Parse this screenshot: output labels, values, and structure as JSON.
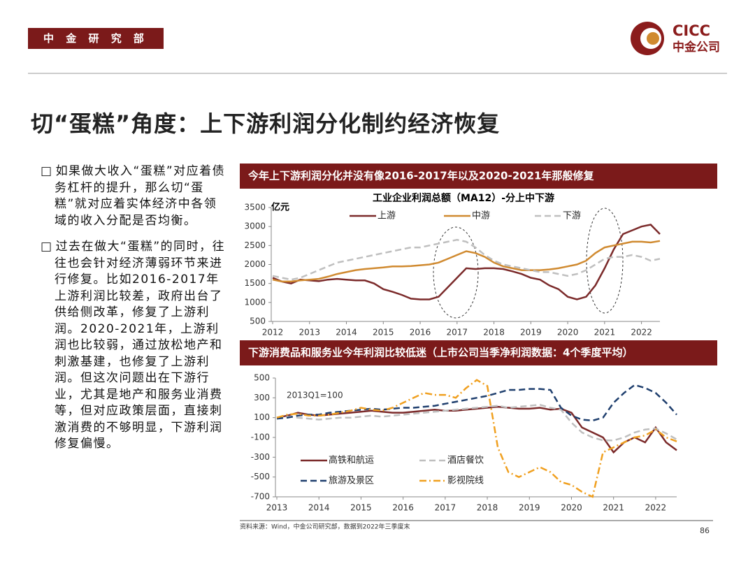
{
  "header": {
    "department": "中 金 研 究 部",
    "logo_en": "CICC",
    "logo_cn": "中金公司"
  },
  "title": "切“蛋糕”角度：上下游利润分化制约经济恢复",
  "bullets": [
    "如果做大收入“蛋糕”对应着债务杠杆的提升，那么切“蛋糕”就对应着实体经济中各领域的收入分配是否均衡。",
    "过去在做大“蛋糕”的同时，往往也会针对经济薄弱环节来进行修复。比如2016-2017年上游利润比较差，政府出台了供给侧改革，修复了上游利润。2020-2021年，上游利润也比较弱，通过放松地产和刺激基建，也修复了上游利润。但这次问题出在下游行业，尤其是地产和服务业消费等，但对应政策层面，直接刺激消费的不够明显，下游利润修复偏慢。"
  ],
  "source": "资料来源：Wind，中金公司研究部，数据到2022年三季度末",
  "page_number": "86",
  "chart_data": [
    {
      "type": "line",
      "subtitle": "今年上下游利润分化并没有像2016-2017年以及2020-2021年那般修复",
      "title": "工业企业利润总额（MA12）-分上中下游",
      "y_label": "亿元",
      "x": [
        2012,
        2012.25,
        2012.5,
        2012.75,
        2013,
        2013.25,
        2013.5,
        2013.75,
        2014,
        2014.25,
        2014.5,
        2014.75,
        2015,
        2015.25,
        2015.5,
        2015.75,
        2016,
        2016.25,
        2016.5,
        2016.75,
        2017,
        2017.25,
        2017.5,
        2017.75,
        2018,
        2018.25,
        2018.5,
        2018.75,
        2019,
        2019.25,
        2019.5,
        2019.75,
        2020,
        2020.25,
        2020.5,
        2020.75,
        2021,
        2021.25,
        2021.5,
        2021.75,
        2022,
        2022.25,
        2022.5
      ],
      "xlim": [
        2012,
        2022.5
      ],
      "xticks": [
        2012,
        2013,
        2014,
        2015,
        2016,
        2017,
        2018,
        2019,
        2020,
        2021,
        2022
      ],
      "ylim": [
        500,
        3500
      ],
      "yticks": [
        500,
        1000,
        1500,
        2000,
        2500,
        3000,
        3500
      ],
      "series": [
        {
          "name": "上游",
          "color": "#7b2a2a",
          "style": "solid",
          "values": [
            1650,
            1550,
            1500,
            1600,
            1580,
            1560,
            1600,
            1620,
            1600,
            1580,
            1580,
            1500,
            1350,
            1280,
            1200,
            1100,
            1080,
            1080,
            1150,
            1400,
            1650,
            1900,
            1880,
            1900,
            1900,
            1880,
            1820,
            1750,
            1650,
            1600,
            1450,
            1350,
            1150,
            1080,
            1150,
            1450,
            1900,
            2400,
            2800,
            2900,
            3000,
            3050,
            2800
          ]
        },
        {
          "name": "中游",
          "color": "#d08a30",
          "style": "solid",
          "values": [
            1600,
            1550,
            1550,
            1580,
            1600,
            1620,
            1680,
            1750,
            1800,
            1850,
            1880,
            1900,
            1920,
            1950,
            1950,
            1960,
            1980,
            2000,
            2050,
            2150,
            2250,
            2350,
            2300,
            2200,
            2050,
            1950,
            1900,
            1850,
            1850,
            1850,
            1870,
            1900,
            1950,
            2000,
            2100,
            2300,
            2450,
            2500,
            2550,
            2600,
            2600,
            2580,
            2620
          ]
        },
        {
          "name": "下游",
          "color": "#bfbfbf",
          "style": "dashed",
          "values": [
            1700,
            1650,
            1600,
            1650,
            1750,
            1850,
            1950,
            2050,
            2100,
            2150,
            2200,
            2250,
            2300,
            2350,
            2400,
            2450,
            2450,
            2500,
            2550,
            2600,
            2650,
            2600,
            2450,
            2250,
            2100,
            2000,
            1950,
            1900,
            1850,
            1800,
            1800,
            1750,
            1700,
            1750,
            1850,
            2000,
            2150,
            2200,
            2200,
            2250,
            2200,
            2100,
            2150
          ]
        }
      ]
    },
    {
      "type": "line",
      "subtitle": "下游消费品和服务业今年利润比较低迷（上市公司当季净利润数据：4个季度平均）",
      "annotation": "2013Q1=100",
      "x": [
        2013,
        2013.25,
        2013.5,
        2013.75,
        2014,
        2014.25,
        2014.5,
        2014.75,
        2015,
        2015.25,
        2015.5,
        2015.75,
        2016,
        2016.25,
        2016.5,
        2016.75,
        2017,
        2017.25,
        2017.5,
        2017.75,
        2018,
        2018.25,
        2018.5,
        2018.75,
        2019,
        2019.25,
        2019.5,
        2019.75,
        2020,
        2020.25,
        2020.5,
        2020.75,
        2021,
        2021.25,
        2021.5,
        2021.75,
        2022,
        2022.25,
        2022.5
      ],
      "xlim": [
        2013,
        2022.5
      ],
      "xticks": [
        2013,
        2014,
        2015,
        2016,
        2017,
        2018,
        2019,
        2020,
        2021,
        2022
      ],
      "ylim": [
        -700,
        500
      ],
      "yticks": [
        -700,
        -500,
        -300,
        -100,
        100,
        300,
        500
      ],
      "series": [
        {
          "name": "高铁和航运",
          "color": "#7b2a2a",
          "style": "solid",
          "values": [
            100,
            120,
            150,
            130,
            120,
            130,
            140,
            150,
            160,
            170,
            160,
            150,
            150,
            160,
            170,
            180,
            170,
            170,
            180,
            190,
            200,
            210,
            200,
            190,
            190,
            200,
            180,
            190,
            150,
            0,
            -50,
            -100,
            -250,
            -150,
            -100,
            -150,
            0,
            -150,
            -230
          ]
        },
        {
          "name": "酒店餐饮",
          "color": "#bfbfbf",
          "style": "dashed",
          "values": [
            100,
            110,
            100,
            90,
            80,
            90,
            100,
            100,
            110,
            120,
            110,
            120,
            130,
            140,
            150,
            160,
            170,
            180,
            190,
            200,
            210,
            220,
            200,
            210,
            220,
            230,
            200,
            180,
            50,
            -50,
            -100,
            -130,
            -130,
            -100,
            -50,
            -20,
            -10,
            -60,
            -120
          ]
        },
        {
          "name": "旅游及景区",
          "color": "#1f3f6e",
          "style": "dashed",
          "values": [
            90,
            100,
            120,
            130,
            130,
            150,
            160,
            170,
            180,
            190,
            180,
            190,
            200,
            200,
            210,
            220,
            240,
            260,
            280,
            300,
            320,
            350,
            380,
            380,
            390,
            390,
            380,
            200,
            120,
            80,
            70,
            100,
            250,
            350,
            430,
            400,
            350,
            250,
            130
          ]
        },
        {
          "name": "影视院线",
          "color": "#f0a020",
          "style": "dashdot",
          "values": [
            100,
            130,
            140,
            120,
            120,
            130,
            150,
            170,
            200,
            180,
            170,
            200,
            250,
            300,
            350,
            330,
            330,
            300,
            400,
            480,
            420,
            -200,
            -450,
            -500,
            -450,
            -400,
            -450,
            -550,
            -580,
            -650,
            -700,
            -250,
            -200,
            -150,
            -100,
            -80,
            -20,
            -100,
            -140
          ]
        }
      ]
    }
  ]
}
